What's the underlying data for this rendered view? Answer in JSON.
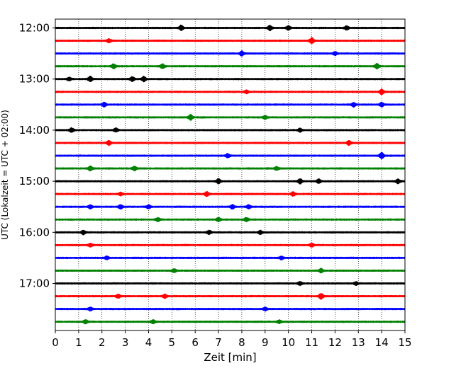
{
  "chart_data": {
    "type": "line",
    "title": "",
    "xlabel": "Zeit  [min]",
    "ylabel": "UTC (Lokalzeit = UTC + 02:00)",
    "xlim": [
      0,
      15
    ],
    "x_ticks": [
      0,
      1,
      2,
      3,
      4,
      5,
      6,
      7,
      8,
      9,
      10,
      11,
      12,
      13,
      14,
      15
    ],
    "x_grid": "dotted vertical lines at each minute",
    "trace_interval_minutes": 15,
    "y_ticks": [
      "12:00",
      "13:00",
      "14:00",
      "15:00",
      "16:00",
      "17:00"
    ],
    "trace_colors": [
      "#000000",
      "#ff0000",
      "#0000ff",
      "#008000"
    ],
    "traces": [
      {
        "start": "12:00",
        "events": [
          [
            5.4,
            1.6
          ],
          [
            9.2,
            1.5
          ],
          [
            10.0,
            1.2
          ],
          [
            12.5,
            1.2
          ]
        ]
      },
      {
        "start": "12:15",
        "events": [
          [
            11.0,
            1.8
          ],
          [
            2.3,
            1.0
          ]
        ]
      },
      {
        "start": "12:30",
        "events": [
          [
            8.0,
            1.5
          ],
          [
            12.0,
            1.0
          ]
        ]
      },
      {
        "start": "12:45",
        "events": [
          [
            2.5,
            1.4
          ],
          [
            4.6,
            1.3
          ],
          [
            13.8,
            1.5
          ]
        ]
      },
      {
        "start": "13:00",
        "events": [
          [
            1.5,
            1.6
          ],
          [
            3.3,
            1.4
          ],
          [
            3.8,
            1.5
          ],
          [
            0.6,
            1.0
          ]
        ]
      },
      {
        "start": "13:15",
        "events": [
          [
            14.0,
            1.7
          ],
          [
            8.2,
            1.0
          ]
        ]
      },
      {
        "start": "13:30",
        "events": [
          [
            2.1,
            1.3
          ],
          [
            12.8,
            1.3
          ],
          [
            14.0,
            1.3
          ]
        ]
      },
      {
        "start": "13:45",
        "events": [
          [
            5.8,
            1.7
          ],
          [
            9.0,
            1.0
          ]
        ]
      },
      {
        "start": "14:00",
        "events": [
          [
            0.7,
            1.3
          ],
          [
            2.6,
            1.1
          ],
          [
            10.5,
            1.1
          ]
        ]
      },
      {
        "start": "14:15",
        "events": [
          [
            2.3,
            1.4
          ],
          [
            12.6,
            1.4
          ]
        ]
      },
      {
        "start": "14:30",
        "events": [
          [
            14.0,
            1.9
          ],
          [
            7.4,
            1.1
          ]
        ]
      },
      {
        "start": "14:45",
        "events": [
          [
            1.5,
            1.4
          ],
          [
            3.4,
            1.3
          ],
          [
            9.5,
            1.0
          ]
        ]
      },
      {
        "start": "15:00",
        "events": [
          [
            7.0,
            1.5
          ],
          [
            10.5,
            1.5
          ],
          [
            11.3,
            1.2
          ],
          [
            14.7,
            1.3
          ]
        ]
      },
      {
        "start": "15:15",
        "events": [
          [
            6.5,
            1.4
          ],
          [
            10.2,
            1.3
          ],
          [
            2.8,
            1.0
          ]
        ]
      },
      {
        "start": "15:30",
        "events": [
          [
            1.5,
            1.1
          ],
          [
            2.8,
            1.2
          ],
          [
            4.0,
            1.1
          ],
          [
            7.6,
            1.3
          ],
          [
            8.3,
            1.1
          ]
        ]
      },
      {
        "start": "15:45",
        "events": [
          [
            4.4,
            1.1
          ],
          [
            7.0,
            1.1
          ],
          [
            8.2,
            1.1
          ]
        ]
      },
      {
        "start": "16:00",
        "events": [
          [
            1.2,
            1.2
          ],
          [
            6.6,
            1.2
          ],
          [
            8.8,
            1.0
          ]
        ]
      },
      {
        "start": "16:15",
        "events": [
          [
            1.5,
            1.0
          ],
          [
            11.0,
            1.0
          ]
        ]
      },
      {
        "start": "16:30",
        "events": [
          [
            2.2,
            1.0
          ],
          [
            9.7,
            1.0
          ]
        ]
      },
      {
        "start": "16:45",
        "events": [
          [
            11.4,
            1.2
          ],
          [
            5.1,
            1.0
          ]
        ]
      },
      {
        "start": "17:00",
        "events": [
          [
            10.5,
            1.1
          ],
          [
            12.9,
            1.0
          ]
        ]
      },
      {
        "start": "17:15",
        "events": [
          [
            11.4,
            1.7
          ],
          [
            2.7,
            1.1
          ],
          [
            4.7,
            1.1
          ]
        ]
      },
      {
        "start": "17:30",
        "events": [
          [
            1.5,
            1.0
          ],
          [
            9.0,
            1.0
          ]
        ]
      },
      {
        "start": "17:45",
        "events": [
          [
            1.3,
            1.1
          ],
          [
            4.2,
            1.1
          ],
          [
            9.6,
            1.0
          ]
        ]
      }
    ]
  }
}
